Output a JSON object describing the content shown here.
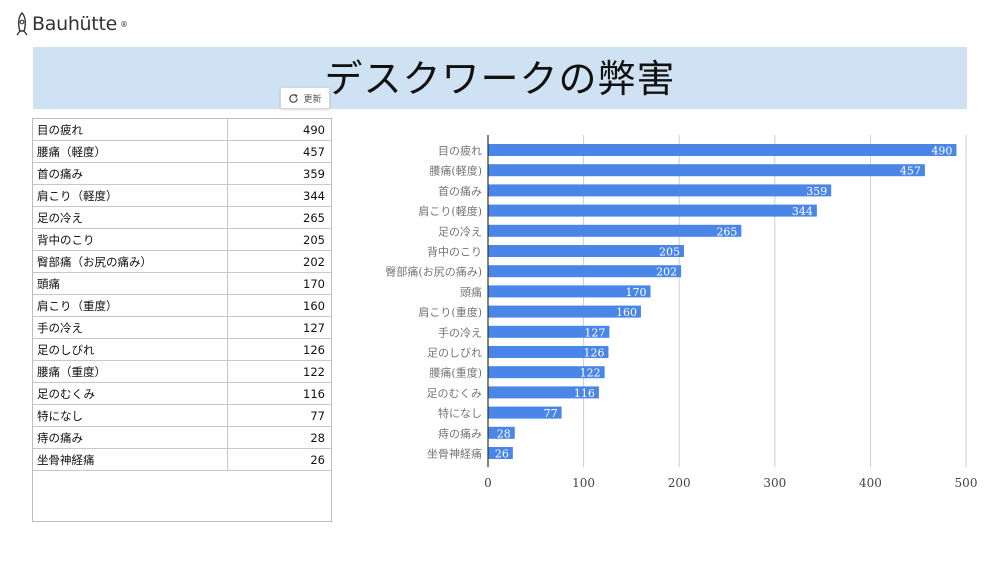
{
  "logo": {
    "text": "Bauhütte",
    "mark": "registered-trademark"
  },
  "title": "デスクワークの弊害",
  "refresh_button": {
    "label": "更新",
    "icon": "refresh-icon"
  },
  "colors": {
    "bar": "#4a86e8",
    "title_band": "#cfe2f3"
  },
  "table": {
    "rows": [
      {
        "name": "目の疲れ",
        "value": "490"
      },
      {
        "name": "腰痛（軽度）",
        "value": "457"
      },
      {
        "name": "首の痛み",
        "value": "359"
      },
      {
        "name": "肩こり（軽度）",
        "value": "344"
      },
      {
        "name": "足の冷え",
        "value": "265"
      },
      {
        "name": "背中のこり",
        "value": "205"
      },
      {
        "name": "臀部痛（お尻の痛み）",
        "value": "202"
      },
      {
        "name": "頭痛",
        "value": "170"
      },
      {
        "name": "肩こり（重度）",
        "value": "160"
      },
      {
        "name": "手の冷え",
        "value": "127"
      },
      {
        "name": "足のしびれ",
        "value": "126"
      },
      {
        "name": "腰痛（重度）",
        "value": "122"
      },
      {
        "name": "足のむくみ",
        "value": "116"
      },
      {
        "name": "特になし",
        "value": "77"
      },
      {
        "name": "痔の痛み",
        "value": "28"
      },
      {
        "name": "坐骨神経痛",
        "value": "26"
      }
    ]
  },
  "chart_data": {
    "type": "bar",
    "orientation": "horizontal",
    "categories": [
      "目の疲れ",
      "腰痛(軽度)",
      "首の痛み",
      "肩こり(軽度)",
      "足の冷え",
      "背中のこり",
      "臀部痛(お尻の痛み)",
      "頭痛",
      "肩こり(重度)",
      "手の冷え",
      "足のしびれ",
      "腰痛(重度)",
      "足のむくみ",
      "特になし",
      "痔の痛み",
      "坐骨神経痛"
    ],
    "values": [
      490,
      457,
      359,
      344,
      265,
      205,
      202,
      170,
      160,
      127,
      126,
      122,
      116,
      77,
      28,
      26
    ],
    "xlim": [
      0,
      500
    ],
    "xticks": [
      "0",
      "100",
      "200",
      "300",
      "400",
      "500"
    ],
    "grid": true,
    "data_labels": true,
    "legend": "none"
  }
}
